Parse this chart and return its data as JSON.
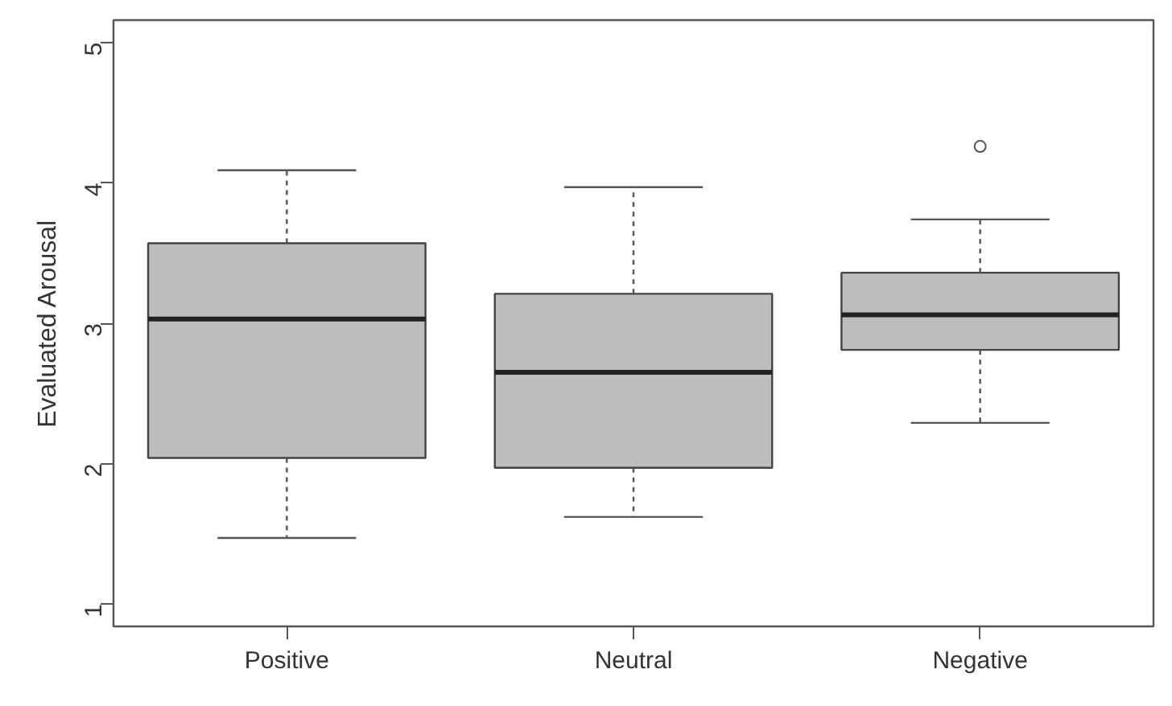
{
  "chart_data": {
    "type": "box",
    "ylabel": "Evaluated Arousal",
    "categories": [
      "Positive",
      "Neutral",
      "Negative"
    ],
    "boxes": [
      {
        "low": 1.47,
        "q1": 2.04,
        "median": 3.03,
        "q3": 3.57,
        "high": 4.09
      },
      {
        "low": 1.62,
        "q1": 1.97,
        "median": 2.65,
        "q3": 3.21,
        "high": 3.97
      },
      {
        "low": 2.29,
        "q1": 2.81,
        "median": 3.06,
        "q3": 3.36,
        "high": 3.74,
        "outliers": [
          4.26
        ]
      }
    ],
    "color": "#bebebe",
    "ylim": [
      0.84,
      5.16
    ],
    "yticks": [
      1,
      2,
      3,
      4,
      5
    ],
    "grid": false
  }
}
